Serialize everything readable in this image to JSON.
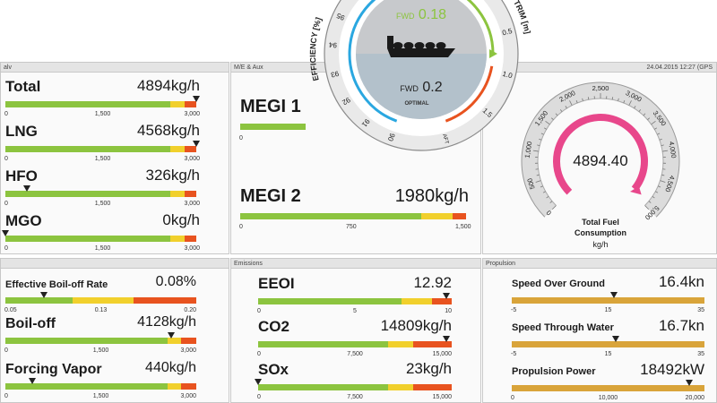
{
  "top": {
    "panel1_title": "alv",
    "panel2_title": "M/E & Aux",
    "panel3_title": "24.04.2015   12:27  (GPS"
  },
  "fuel": [
    {
      "label": "Total",
      "value": "4894",
      "unit": "kg/h",
      "ticks": [
        "0",
        "1,500",
        "3,000"
      ],
      "marker": 0.98,
      "zones": [
        0.85,
        0.07,
        0.06
      ]
    },
    {
      "label": "LNG",
      "value": "4568",
      "unit": "kg/h",
      "ticks": [
        "0",
        "1,500",
        "3,000"
      ],
      "marker": 0.98,
      "zones": [
        0.85,
        0.07,
        0.06
      ]
    },
    {
      "label": "HFO",
      "value": "326",
      "unit": "kg/h",
      "ticks": [
        "0",
        "1,500",
        "3,000"
      ],
      "marker": 0.11,
      "zones": [
        0.85,
        0.07,
        0.06
      ]
    },
    {
      "label": "MGO",
      "value": "0",
      "unit": "kg/h",
      "ticks": [
        "0",
        "1,500",
        "3,000"
      ],
      "marker": 0.0,
      "zones": [
        0.85,
        0.07,
        0.06
      ]
    }
  ],
  "megi": {
    "megi1": {
      "label": "MEGI 1",
      "tick0": "0",
      "fill": 0.0
    },
    "megi2": {
      "label": "MEGI 2",
      "value": "1980",
      "unit": "kg/h",
      "ticks": [
        "0",
        "750",
        "1,500"
      ],
      "zones": [
        0.8,
        0.14,
        0.06
      ]
    }
  },
  "trim_gauge": {
    "efficiency_label": "EFFICIENCY [%]",
    "trim_label": "TRIM [m]",
    "fwd_top": "FWD",
    "fwd_top_value": "0.18",
    "fwd_bottom": "FWD",
    "fwd_bottom_value": "0.2",
    "optimal": "OPTIMAL",
    "eff_ticks": [
      "90",
      "91",
      "92",
      "93",
      "94",
      "95",
      "96",
      "97"
    ],
    "trim_ticks": [
      "0.5",
      "0.0",
      "0.5",
      "1.0",
      "1.5"
    ],
    "aft": "AFT"
  },
  "total_gauge": {
    "value": "4894.40",
    "label1": "Total Fuel",
    "label2": "Consumption",
    "unit": "kg/h",
    "ticks": [
      "0",
      "500",
      "1,000",
      "1,500",
      "2,000",
      "2,500",
      "3,000",
      "3,500",
      "4,000",
      "4,500",
      "5,000"
    ],
    "fraction": 0.9789
  },
  "bottom": {
    "panel1_title": "",
    "panel2_title": "Emissions",
    "panel3_title": "Propulsion"
  },
  "boiloff": [
    {
      "label": "Effective Boil-off Rate",
      "value": "0.08",
      "unit": "%",
      "ticks": [
        "0.05",
        "0.13",
        "0.20"
      ],
      "marker": 0.2,
      "style": "a"
    },
    {
      "label": "Boil-off",
      "value": "4128",
      "unit": "kg/h",
      "ticks": [
        "0",
        "1,500",
        "3,000"
      ],
      "marker": 0.87,
      "style": "b"
    },
    {
      "label": "Forcing Vapor",
      "value": "440",
      "unit": "kg/h",
      "ticks": [
        "0",
        "1,500",
        "3,000"
      ],
      "marker": 0.14,
      "style": "b"
    }
  ],
  "emissions": [
    {
      "label": "EEOI",
      "value": "12.92",
      "unit": "",
      "ticks": [
        "0",
        "5",
        "10"
      ],
      "marker": 0.97,
      "zones": [
        0.74,
        0.16,
        0.1
      ]
    },
    {
      "label": "CO2",
      "value": "14809",
      "unit": "kg/h",
      "ticks": [
        "0",
        "7,500",
        "15,000"
      ],
      "marker": 0.97,
      "zones": [
        0.67,
        0.13,
        0.2
      ]
    },
    {
      "label": "SOx",
      "value": "23",
      "unit": "kg/h",
      "ticks": [
        "0",
        "7,500",
        "15,000"
      ],
      "marker": 0.0,
      "zones": [
        0.67,
        0.13,
        0.2
      ]
    }
  ],
  "propulsion": [
    {
      "label": "Speed Over Ground",
      "value": "16.4",
      "unit": "kn",
      "ticks": [
        "-5",
        "15",
        "35"
      ],
      "marker": 0.53
    },
    {
      "label": "Speed Through Water",
      "value": "16.7",
      "unit": "kn",
      "ticks": [
        "-5",
        "15",
        "35"
      ],
      "marker": 0.54
    },
    {
      "label": "Propulsion Power",
      "value": "18492",
      "unit": "kW",
      "ticks": [
        "0",
        "10,000",
        "20,000"
      ],
      "marker": 0.92
    }
  ],
  "colors": {
    "green": "#8cc43f",
    "yellow": "#f1d02c",
    "red": "#e8531f",
    "amber": "#d9a43a",
    "pink": "#e8478b",
    "blue": "#2aa7e0"
  }
}
